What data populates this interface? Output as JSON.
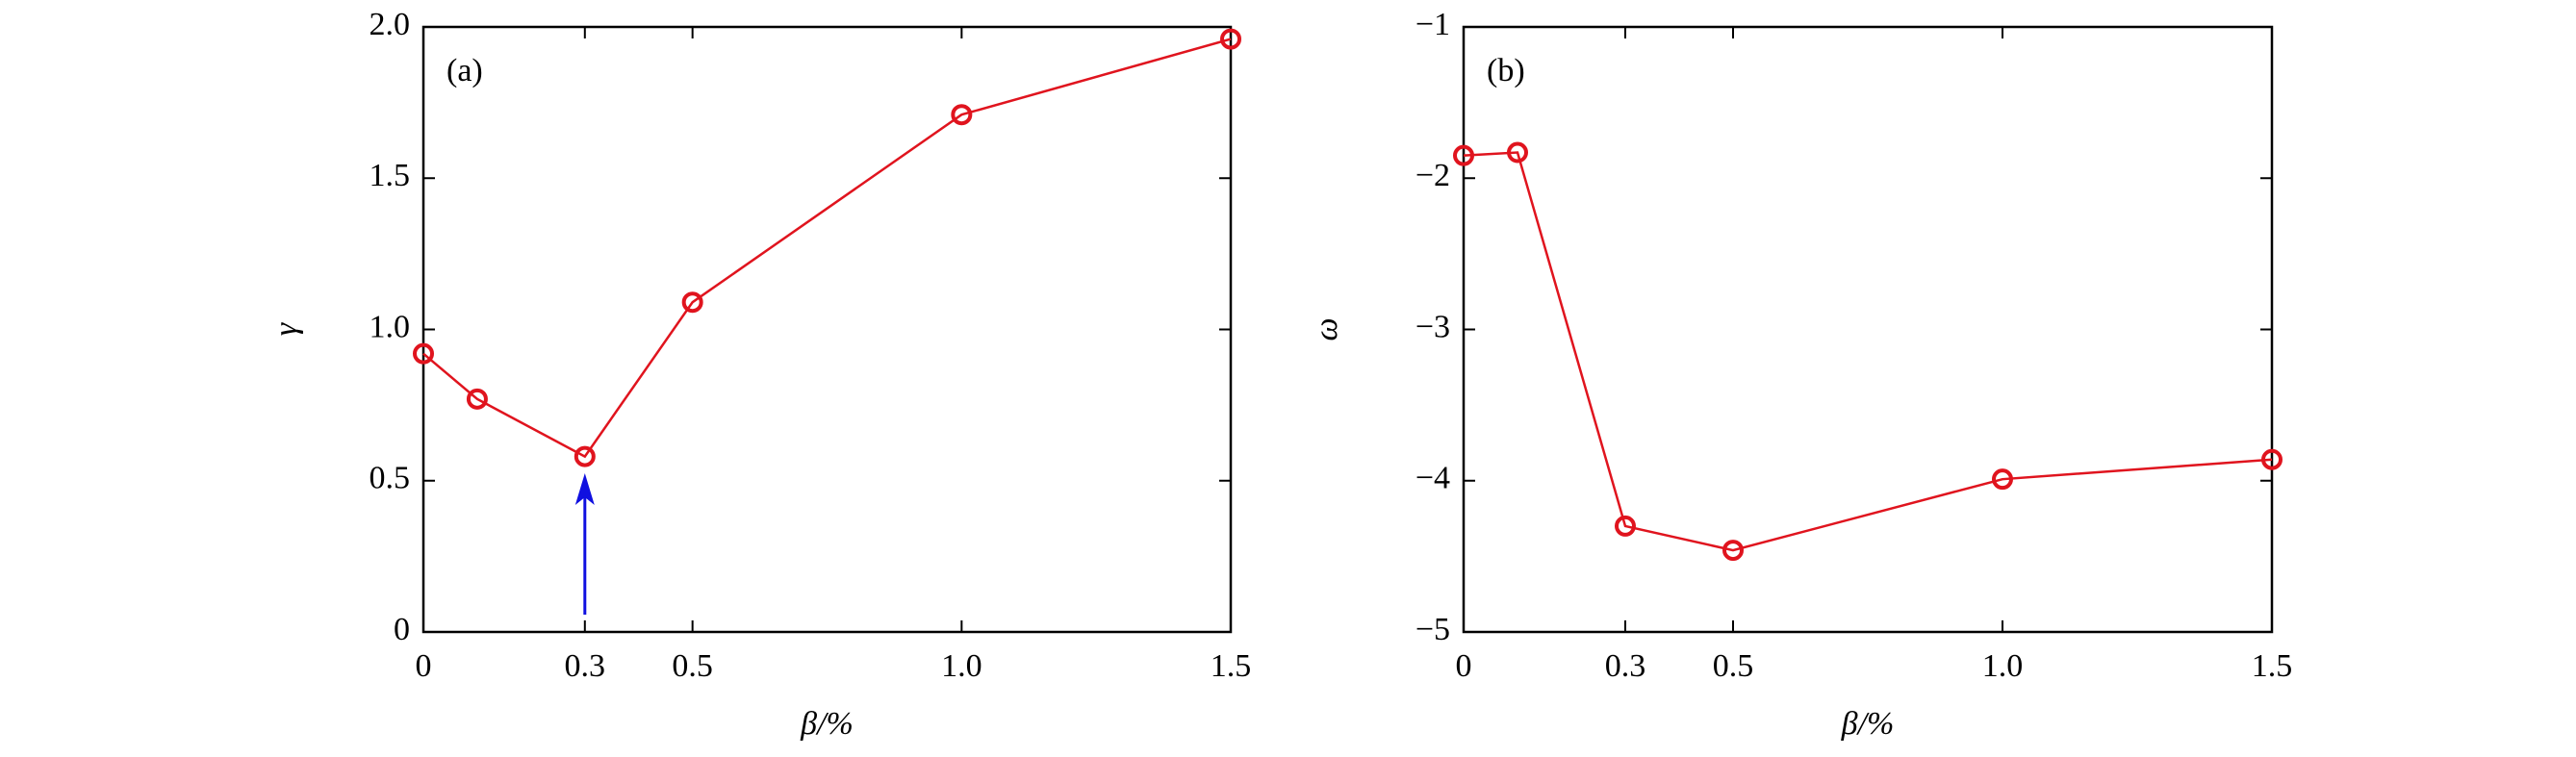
{
  "chart_data": [
    {
      "type": "line",
      "annotation": "(a)",
      "xlabel": "β/%",
      "ylabel": "γ",
      "x": [
        0,
        0.1,
        0.3,
        0.5,
        1.0,
        1.5
      ],
      "series": [
        {
          "color": "#e0141e",
          "values": [
            0.92,
            0.77,
            0.58,
            1.09,
            1.71,
            1.96
          ]
        }
      ],
      "xlim": [
        0,
        1.5
      ],
      "ylim": [
        0,
        2
      ],
      "xticks": [
        0,
        0.3,
        0.5,
        {
          "value": 1,
          "label": "1.0"
        },
        1.5
      ],
      "yticks": [
        0,
        0.5,
        {
          "value": 1,
          "label": "1.0"
        },
        1.5,
        {
          "value": 2,
          "label": "2.0"
        }
      ],
      "arrow_color": "#1010e0"
    },
    {
      "type": "line",
      "annotation": "(b)",
      "xlabel": "β/%",
      "ylabel": "ω",
      "x": [
        0,
        0.1,
        0.3,
        0.5,
        1.0,
        1.5
      ],
      "series": [
        {
          "color": "#e0141e",
          "values": [
            -1.85,
            -1.83,
            -4.3,
            -4.46,
            -3.99,
            -3.86
          ]
        }
      ],
      "xlim": [
        0,
        1.5
      ],
      "ylim": [
        -5,
        -1
      ],
      "xticks": [
        0,
        0.3,
        0.5,
        {
          "value": 1,
          "label": "1.0"
        },
        1.5
      ],
      "yticks": [
        {
          "value": -5,
          "label": "−5"
        },
        {
          "value": -4,
          "label": "−4"
        },
        {
          "value": -3,
          "label": "−3"
        },
        {
          "value": -2,
          "label": "−2"
        },
        {
          "value": -1,
          "label": "−1"
        }
      ]
    }
  ]
}
